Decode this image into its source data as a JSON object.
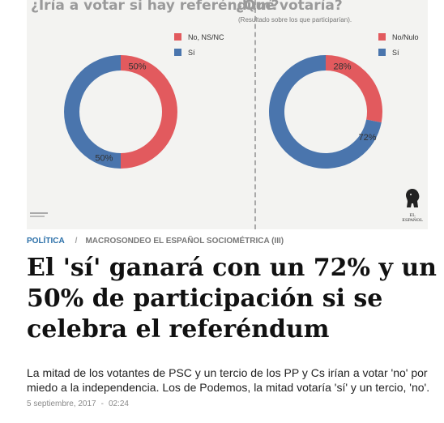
{
  "infographic": {
    "left": {
      "title": "¿Iría a votar si hay referéndum?",
      "legend": [
        {
          "label": "No, NS/NC",
          "color": "#e25a5e"
        },
        {
          "label": "Sí",
          "color": "#4a75ad"
        }
      ]
    },
    "right": {
      "title": "¿Qué votaría?",
      "subtitle": "(Resultado sobre los que participarían).",
      "legend": [
        {
          "label": "No/Nulo",
          "color": "#e25a5e"
        },
        {
          "label": "Sí",
          "color": "#4a75ad"
        }
      ]
    },
    "logo_text": "EL ESPAÑOL"
  },
  "chart_data": [
    {
      "type": "pie",
      "title": "¿Iría a votar si hay referéndum?",
      "categories": [
        "No, NS/NC",
        "Sí"
      ],
      "values": [
        50,
        50
      ],
      "labels": [
        "50%",
        "50%"
      ],
      "colors": [
        "#e25a5e",
        "#4a75ad"
      ],
      "legend": "top-right"
    },
    {
      "type": "pie",
      "title": "¿Qué votaría?",
      "subtitle": "(Resultado sobre los que participarían).",
      "categories": [
        "No/Nulo",
        "Sí"
      ],
      "values": [
        28,
        72
      ],
      "labels": [
        "28%",
        "72%"
      ],
      "colors": [
        "#e25a5e",
        "#4a75ad"
      ],
      "legend": "top-right"
    }
  ],
  "article": {
    "category": "POLÍTICA",
    "separator": "/",
    "subsection": "MACROSONDEO EL ESPAÑOL SOCIOMÉTRICA (III)",
    "headline": "El 'sí' ganará con un 72% y un 50% de participación si se celebra el referéndum",
    "summary": "La mitad de los votantes de PSC y un tercio de los PP y Cs irían a votar 'no' por miedo a la independencia. Los de Podemos, la mitad votaría 'sí' y un tercio, 'no'.",
    "date": "5 septiembre, 2017",
    "date_separator": "-",
    "time": "02:24"
  }
}
